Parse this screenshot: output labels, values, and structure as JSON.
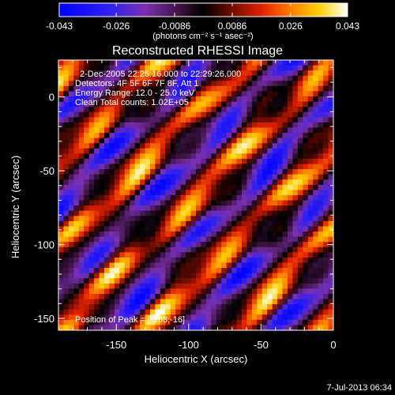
{
  "chart_data": {
    "type": "heatmap",
    "title": "Reconstructed RHESSI Image",
    "xlabel": "Heliocentric X (arcsec)",
    "ylabel": "Heliocentric Y (arcsec)",
    "xlim": [
      -190,
      0
    ],
    "ylim": [
      -158,
      25
    ],
    "xticks": [
      -150,
      -100,
      -50,
      0
    ],
    "yticks": [
      0,
      -50,
      -100,
      -150
    ],
    "colorbar": {
      "min": -0.043,
      "max": 0.043,
      "ticks": [
        "-0.043",
        "-0.026",
        "-0.0086",
        "0.0086",
        "0.026",
        "0.043"
      ],
      "unit_label": "(photons cm⁻² s⁻¹ asec⁻²)",
      "colormap": "blue-purple-black-red-yellow-white"
    },
    "annotations": [
      "2-Dec-2005 22:25:16.000 to 22:29:26.000",
      "Detectors: 4F 5F 6F 7F 8F, Att 1",
      "Energy Range: 12.0 - 25.0 keV",
      "Clean    Total counts: 1.02E+05",
      "Position of Peak = [-163,-16]"
    ],
    "peak_position": [
      -163,
      -16
    ],
    "pattern": {
      "description": "diagonal fringe pattern",
      "grid_cols": 54,
      "grid_rows": 52
    }
  },
  "footer": {
    "timestamp": "7-Jul-2013 06:34"
  },
  "colors": {
    "background": "#000000",
    "text": "#ffffff",
    "negative_low": "#0000ff",
    "negative_mid": "#6a2aa8",
    "zero": "#000000",
    "positive_mid": "#c81e00",
    "positive_high": "#ffb000",
    "max": "#ffffff"
  }
}
